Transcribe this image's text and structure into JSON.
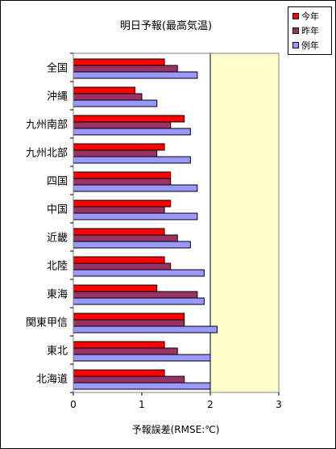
{
  "chart_data": {
    "type": "bar",
    "orientation": "horizontal",
    "title": "明日予報(最高気温)",
    "xlabel": "予報誤差(RMSE:℃)",
    "ylabel": "",
    "xlim": [
      0,
      3
    ],
    "xticks": [
      "0",
      "1",
      "2",
      "3"
    ],
    "highlight_range": [
      2,
      3
    ],
    "legend_position": "top-right",
    "categories": [
      "全国",
      "沖縄",
      "九州南部",
      "九州北部",
      "四国",
      "中国",
      "近畿",
      "北陸",
      "東海",
      "関東甲信",
      "東北",
      "北海道"
    ],
    "series": [
      {
        "name": "今年",
        "color": "#ff0000",
        "values": [
          1.33,
          0.9,
          1.62,
          1.33,
          1.42,
          1.42,
          1.33,
          1.33,
          1.22,
          1.62,
          1.33,
          1.33
        ]
      },
      {
        "name": "昨年",
        "color": "#993366",
        "values": [
          1.52,
          1.0,
          1.42,
          1.22,
          1.42,
          1.33,
          1.52,
          1.42,
          1.81,
          1.62,
          1.52,
          1.62
        ]
      },
      {
        "name": "例年",
        "color": "#9999ff",
        "values": [
          1.81,
          1.22,
          1.71,
          1.71,
          1.81,
          1.81,
          1.71,
          1.91,
          1.91,
          2.1,
          2.0,
          2.0
        ]
      }
    ]
  }
}
